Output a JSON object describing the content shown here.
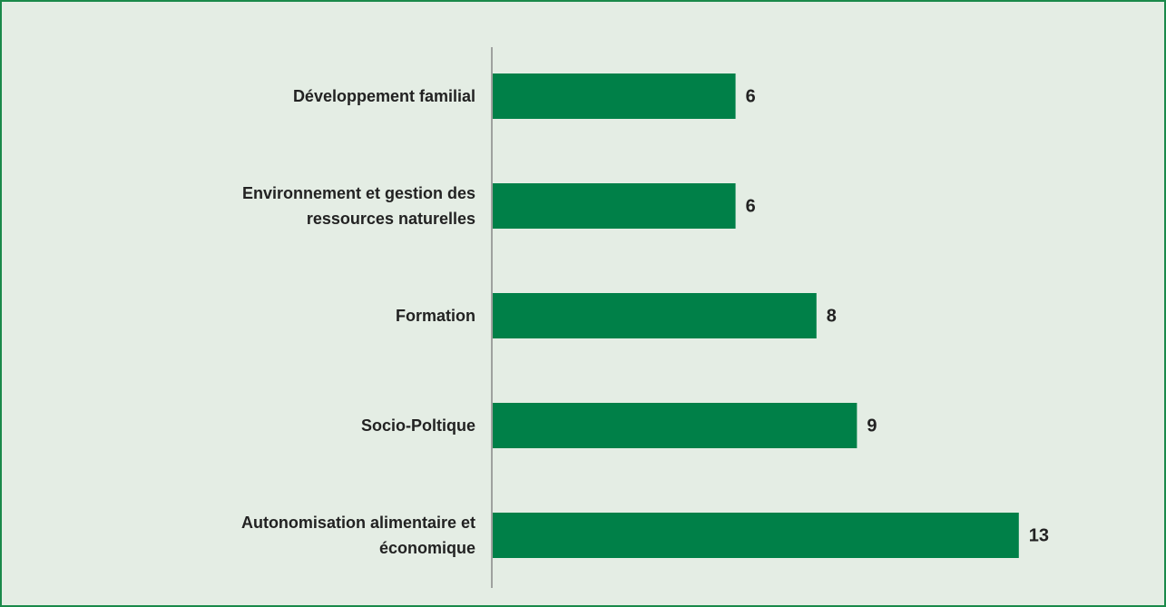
{
  "chart_data": {
    "type": "bar",
    "orientation": "horizontal",
    "categories": [
      "Développement familial",
      "Environnement et gestion des ressources naturelles",
      "Formation",
      "Socio-Poltique",
      "Autonomisation alimentaire et économique"
    ],
    "values": [
      6,
      6,
      8,
      9,
      13
    ],
    "color": "#008048"
  }
}
